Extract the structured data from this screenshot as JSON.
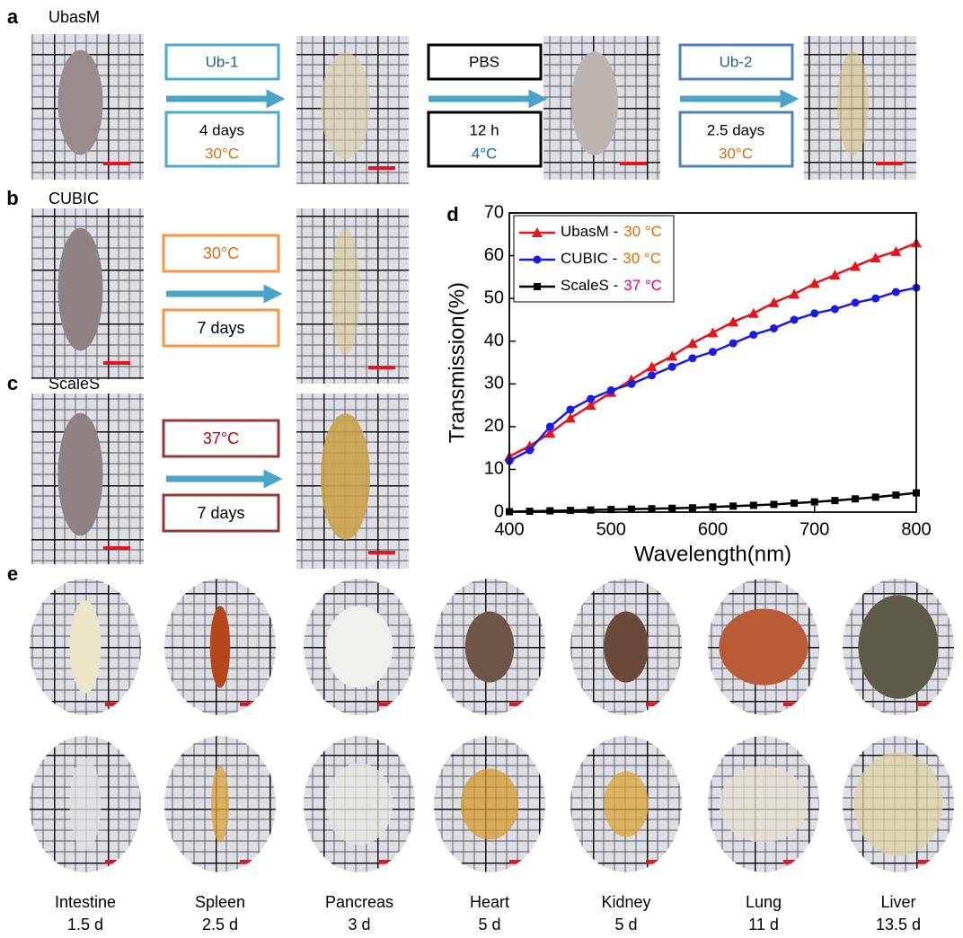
{
  "panel_a": {
    "label": "a",
    "title": "UbasM",
    "steps": [
      {
        "reagent": "Ub-1",
        "duration": "4 days",
        "temperature": "30°C"
      },
      {
        "reagent": "PBS",
        "duration": "12 h",
        "temperature": "4°C"
      },
      {
        "reagent": "Ub-2",
        "duration": "2.5 days",
        "temperature": "30°C"
      }
    ]
  },
  "panel_b": {
    "label": "b",
    "title": "CUBIC",
    "temperature": "30°C",
    "duration": "7 days"
  },
  "panel_c": {
    "label": "c",
    "title": "ScaleS",
    "temperature": "37°C",
    "duration": "7 days"
  },
  "panel_d": {
    "label": "d"
  },
  "chart_data": {
    "type": "line",
    "x_label": "Wavelength(nm)",
    "y_label": "Transmission(%)",
    "x": [
      400,
      420,
      440,
      460,
      480,
      500,
      520,
      540,
      560,
      580,
      600,
      620,
      640,
      660,
      680,
      700,
      720,
      740,
      760,
      780,
      800
    ],
    "series": [
      {
        "name": "UbasM -",
        "condition": "30 °C",
        "condition_color": "#e36c09",
        "color": "#e8141c",
        "marker": "triangle",
        "values": [
          13,
          15.5,
          18.5,
          22,
          25,
          28,
          31,
          34,
          36.5,
          39.5,
          42,
          44.5,
          46.5,
          49,
          51,
          53.5,
          55.5,
          57.5,
          59.5,
          61,
          63
        ]
      },
      {
        "name": "CUBIC -",
        "condition": "30 °C",
        "condition_color": "#e36c09",
        "color": "#1a1ae6",
        "marker": "circle",
        "values": [
          12,
          14.5,
          20,
          24,
          26.5,
          28.5,
          30,
          32,
          34,
          36,
          37.5,
          39.5,
          41.5,
          43,
          45,
          46.5,
          47.5,
          49,
          50,
          51.5,
          52.5
        ]
      },
      {
        "name": "ScaleS -",
        "condition": "37 °C",
        "condition_color": "#e6007e",
        "color": "#000000",
        "marker": "square",
        "values": [
          0.1,
          0.2,
          0.3,
          0.4,
          0.5,
          0.6,
          0.7,
          0.8,
          0.9,
          1.0,
          1.2,
          1.4,
          1.6,
          1.8,
          2.1,
          2.4,
          2.7,
          3.1,
          3.5,
          4.0,
          4.5
        ]
      }
    ],
    "xlim": [
      400,
      800
    ],
    "xticks": [
      400,
      500,
      600,
      700,
      800
    ],
    "ylim": [
      0,
      70
    ],
    "yticks": [
      0,
      10,
      20,
      30,
      40,
      50,
      60,
      70
    ],
    "legend": "upper left"
  },
  "panel_e": {
    "label": "e",
    "organs": [
      {
        "name": "Intestine",
        "time": "1.5 d"
      },
      {
        "name": "Spleen",
        "time": "2.5 d"
      },
      {
        "name": "Pancreas",
        "time": "3 d"
      },
      {
        "name": "Heart",
        "time": "5 d"
      },
      {
        "name": "Kidney",
        "time": "5 d"
      },
      {
        "name": "Lung",
        "time": "11 d"
      },
      {
        "name": "Liver",
        "time": "13.5 d"
      }
    ]
  }
}
